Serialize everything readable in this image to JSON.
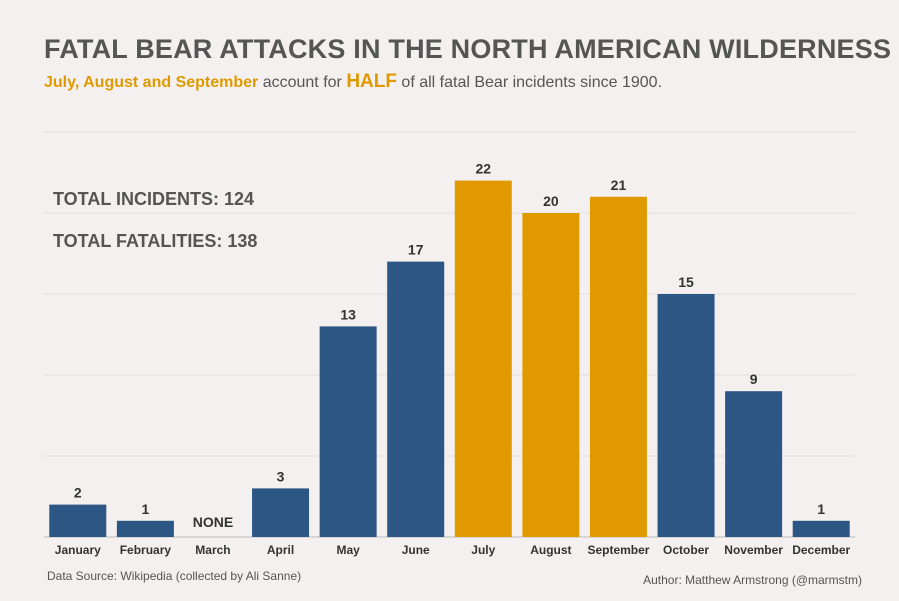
{
  "header": {
    "title": "FATAL BEAR ATTACKS IN THE NORTH AMERICAN WILDERNESS",
    "subtitle_highlight": "July, August and September",
    "subtitle_mid": " account for ",
    "subtitle_emphasis": "HALF",
    "subtitle_end": " of all fatal Bear incidents since 1900."
  },
  "stats": {
    "incidents": "TOTAL INCIDENTS: 124",
    "fatalities": "TOTAL FATALITIES: 138"
  },
  "footer": {
    "source": "Data Source: Wikipedia (collected by Ali Sanne)",
    "author": "Author: Matthew Armstrong (@marmstm)"
  },
  "colors": {
    "base": "#2c5784",
    "highlight": "#e09a00",
    "gridline": "#e2dedd"
  },
  "chart_data": {
    "type": "bar",
    "categories": [
      "January",
      "February",
      "March",
      "April",
      "May",
      "June",
      "July",
      "August",
      "September",
      "October",
      "November",
      "December"
    ],
    "values": [
      2,
      1,
      0,
      3,
      13,
      17,
      22,
      20,
      21,
      15,
      9,
      1
    ],
    "value_labels": [
      "2",
      "1",
      "NONE",
      "3",
      "13",
      "17",
      "22",
      "20",
      "21",
      "15",
      "9",
      "1"
    ],
    "highlighted": [
      "July",
      "August",
      "September"
    ],
    "ylim": [
      0,
      25
    ],
    "gridlines": [
      0,
      5,
      10,
      15,
      20,
      25
    ],
    "xlabel": "",
    "ylabel": "",
    "grid": true
  }
}
